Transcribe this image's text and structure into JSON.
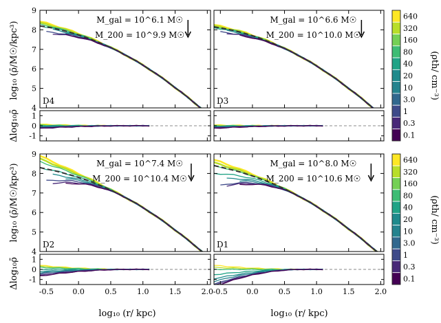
{
  "figure": {
    "xlabel": "log₁₀ (r/ kpc)",
    "ylabel_main": "log₁₀ (ρ̄/M☉/kpc³)",
    "ylabel_resid": "Δlog₁₀ρ̄",
    "colorbar_label": "(ρth/ cm⁻³)",
    "colorbar_ticks": [
      "640",
      "320",
      "160",
      "80",
      "40",
      "20",
      "10",
      "3.0",
      "1",
      "0.3",
      "0.1"
    ],
    "colorbar_colors": [
      "#fde725",
      "#b8de29",
      "#74d055",
      "#3dbc74",
      "#20a386",
      "#1f8a8c",
      "#25838e",
      "#31688e",
      "#3e4a89",
      "#482878",
      "#440154"
    ]
  },
  "chart_data": [
    {
      "type": "line",
      "panel": "D4",
      "annotation_mgal": "M_gal = 10^6.1 M☉",
      "annotation_m200": "M_200 = 10^9.9 M☉",
      "marker_arrow_x": 1.7,
      "x": [
        -0.6,
        -0.5,
        -0.4,
        -0.3,
        -0.2,
        -0.1,
        0.0,
        0.1,
        0.2,
        0.3,
        0.4,
        0.5,
        0.6,
        0.7,
        0.8,
        0.9,
        1.0,
        1.1,
        1.2,
        1.3,
        1.4,
        1.5,
        1.6,
        1.7,
        1.8,
        1.9,
        2.0
      ],
      "series": [
        {
          "name": "fit",
          "style": "dashed",
          "values": [
            8.2,
            8.15,
            8.09,
            8.01,
            7.93,
            7.84,
            7.74,
            7.63,
            7.51,
            7.38,
            7.24,
            7.09,
            6.93,
            6.76,
            6.58,
            6.39,
            6.19,
            5.98,
            5.76,
            5.53,
            5.29,
            5.04,
            4.79,
            4.53,
            4.26,
            3.99,
            3.72
          ]
        }
      ],
      "profile_offsets_at_center": [
        0.22,
        0.15,
        0.08,
        0.0,
        -0.1,
        -0.2,
        -0.3,
        -0.4,
        -0.35
      ],
      "residual_amplitude": 0.35,
      "ylim": [
        4,
        9
      ],
      "resid_ylim": [
        -1.5,
        1.5
      ],
      "xlim": [
        -0.6,
        2.05
      ]
    },
    {
      "type": "line",
      "panel": "D3",
      "annotation_mgal": "M_gal = 10^6.6 M☉",
      "annotation_m200": "M_200 = 10^10.0 M☉",
      "marker_arrow_x": 1.7,
      "x": [
        -0.6,
        -0.5,
        -0.4,
        -0.3,
        -0.2,
        -0.1,
        0.0,
        0.1,
        0.2,
        0.3,
        0.4,
        0.5,
        0.6,
        0.7,
        0.8,
        0.9,
        1.0,
        1.1,
        1.2,
        1.3,
        1.4,
        1.5,
        1.6,
        1.7,
        1.8,
        1.9,
        2.0
      ],
      "series": [
        {
          "name": "fit",
          "style": "dashed",
          "values": [
            8.15,
            8.1,
            8.04,
            7.97,
            7.89,
            7.8,
            7.7,
            7.59,
            7.47,
            7.34,
            7.2,
            7.05,
            6.89,
            6.72,
            6.54,
            6.35,
            6.15,
            5.94,
            5.72,
            5.49,
            5.25,
            5.0,
            4.75,
            4.49,
            4.22,
            3.95,
            3.68
          ]
        }
      ],
      "profile_offsets_at_center": [
        0.1,
        0.05,
        0.0,
        -0.05,
        -0.12,
        -0.2,
        -0.25,
        -0.3,
        -0.35
      ],
      "residual_amplitude": 0.3,
      "ylim": [
        4,
        9
      ],
      "resid_ylim": [
        -1.5,
        1.5
      ],
      "xlim": [
        -0.6,
        2.05
      ]
    },
    {
      "type": "line",
      "panel": "D2",
      "annotation_mgal": "M_gal = 10^7.4 M☉",
      "annotation_m200": "M_200 = 10^10.4 M☉",
      "marker_arrow_x": 1.75,
      "x": [
        -0.6,
        -0.5,
        -0.4,
        -0.3,
        -0.2,
        -0.1,
        0.0,
        0.1,
        0.2,
        0.3,
        0.4,
        0.5,
        0.6,
        0.7,
        0.8,
        0.9,
        1.0,
        1.1,
        1.2,
        1.3,
        1.4,
        1.5,
        1.6,
        1.7,
        1.8,
        1.9,
        2.0
      ],
      "series": [
        {
          "name": "fit",
          "style": "dashed",
          "values": [
            8.3,
            8.23,
            8.16,
            8.08,
            7.99,
            7.9,
            7.8,
            7.69,
            7.57,
            7.44,
            7.3,
            7.15,
            6.99,
            6.82,
            6.64,
            6.45,
            6.25,
            6.04,
            5.82,
            5.59,
            5.35,
            5.1,
            4.85,
            4.59,
            4.32,
            4.05,
            3.78
          ]
        }
      ],
      "profile_offsets_at_center": [
        0.6,
        0.45,
        0.3,
        0.0,
        -0.3,
        -0.5,
        -0.7,
        -0.9,
        -1.0
      ],
      "residual_amplitude": 0.6,
      "ylim": [
        4,
        9
      ],
      "resid_ylim": [
        -1.5,
        1.5
      ],
      "xlim": [
        -0.6,
        2.05
      ]
    },
    {
      "type": "line",
      "panel": "D1",
      "annotation_mgal": "M_gal = 10^8.0 M☉",
      "annotation_m200": "M_200 = 10^10.6 M☉",
      "marker_arrow_x": 1.85,
      "x": [
        -0.6,
        -0.5,
        -0.4,
        -0.3,
        -0.2,
        -0.1,
        0.0,
        0.1,
        0.2,
        0.3,
        0.4,
        0.5,
        0.6,
        0.7,
        0.8,
        0.9,
        1.0,
        1.1,
        1.2,
        1.3,
        1.4,
        1.5,
        1.6,
        1.7,
        1.8,
        1.9,
        2.0
      ],
      "series": [
        {
          "name": "fit",
          "style": "dashed",
          "values": [
            8.4,
            8.33,
            8.25,
            8.17,
            8.08,
            7.98,
            7.87,
            7.75,
            7.63,
            7.5,
            7.36,
            7.21,
            7.05,
            6.88,
            6.7,
            6.51,
            6.31,
            6.1,
            5.88,
            5.65,
            5.41,
            5.16,
            4.91,
            4.65,
            4.38,
            4.11,
            3.84
          ]
        }
      ],
      "profile_offsets_at_center": [
        0.3,
        0.15,
        0.0,
        -0.4,
        -0.7,
        -0.9,
        -1.1,
        -1.2,
        -1.3
      ],
      "residual_amplitude": 0.8,
      "ylim": [
        4,
        9
      ],
      "resid_ylim": [
        -1.5,
        1.5
      ],
      "xlim": [
        -0.6,
        2.05
      ]
    }
  ]
}
